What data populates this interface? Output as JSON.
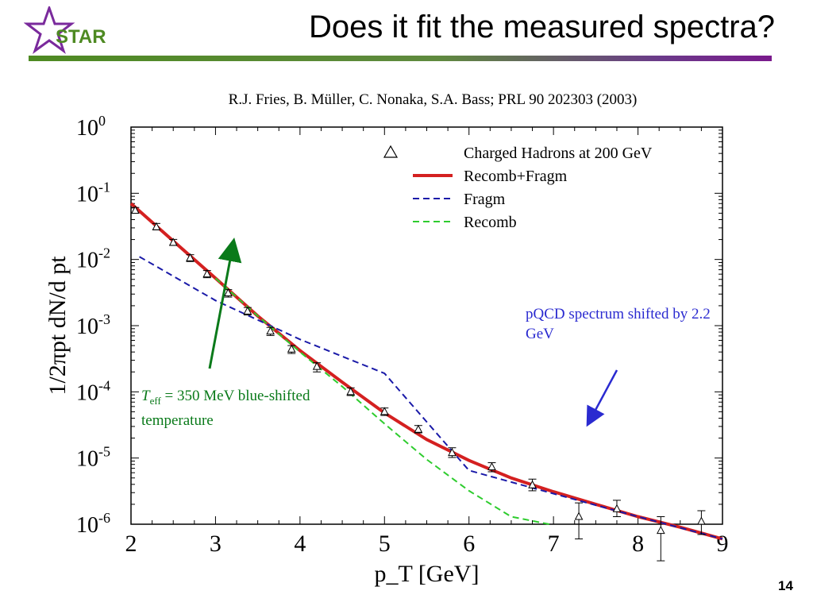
{
  "slide": {
    "title": "Does it fit the measured spectra?",
    "citation": "R.J. Fries, B. Müller, C. Nonaka, S.A. Bass; PRL 90 202303 (2003)",
    "logo_text": "STAR",
    "page_number": "14",
    "header_bar_colors": [
      "#4e8a22",
      "#7a1a8c"
    ]
  },
  "annotations": {
    "teff_symbol": "T",
    "teff_sub": "eff",
    "teff_text": " = 350 MeV blue-shifted temperature",
    "pqcd_text": "pQCD spectrum shifted by 2.2 GeV",
    "teff_color": "#0a7a1a",
    "pqcd_color": "#2a2ad0"
  },
  "chart_data": {
    "type": "line",
    "xlabel": "p_T [GeV]",
    "ylabel": "1/2πpt dN/d pt",
    "xlim": [
      2,
      9
    ],
    "ylim": [
      1e-06,
      1
    ],
    "yscale": "log",
    "xticks": [
      "2",
      "3",
      "4",
      "5",
      "6",
      "7",
      "8",
      "9"
    ],
    "yticks": [
      {
        "base": "10",
        "exp": "0"
      },
      {
        "base": "10",
        "exp": "-1"
      },
      {
        "base": "10",
        "exp": "-2"
      },
      {
        "base": "10",
        "exp": "-3"
      },
      {
        "base": "10",
        "exp": "-4"
      },
      {
        "base": "10",
        "exp": "-5"
      },
      {
        "base": "10",
        "exp": "-6"
      }
    ],
    "grid": false,
    "legend_position": "top-right",
    "series": [
      {
        "name": "Charged Hadrons at 200 GeV",
        "kind": "points",
        "marker": "triangle",
        "color": "#000000",
        "x": [
          2.05,
          2.3,
          2.5,
          2.7,
          2.9,
          3.15,
          3.38,
          3.65,
          3.9,
          4.2,
          4.6,
          5.0,
          5.4,
          5.8,
          6.27,
          6.75,
          7.3,
          7.75,
          8.27,
          8.75
        ],
        "y": [
          0.055,
          0.031,
          0.018,
          0.0105,
          0.006,
          0.0031,
          0.00165,
          0.00082,
          0.00044,
          0.00024,
          0.0001,
          5e-05,
          2.7e-05,
          1.2e-05,
          7.3e-06,
          3.9e-06,
          1.3e-06,
          1.7e-06,
          8e-07,
          1.1e-06
        ],
        "y_low": [
          0.05,
          0.028,
          0.0163,
          0.0093,
          0.0053,
          0.0027,
          0.00145,
          0.00071,
          0.00038,
          0.0002,
          8.8e-05,
          4.4e-05,
          2.4e-05,
          1.02e-05,
          6.2e-06,
          3.2e-06,
          6e-07,
          1.3e-06,
          2.8e-07,
          7e-07
        ],
        "y_high": [
          0.061,
          0.035,
          0.0201,
          0.0118,
          0.0068,
          0.0035,
          0.00188,
          0.00094,
          0.0005,
          0.000275,
          0.000115,
          5.7e-05,
          3.1e-05,
          1.43e-05,
          8.5e-06,
          4.8e-06,
          2.1e-06,
          2.3e-06,
          1.3e-06,
          1.6e-06
        ]
      },
      {
        "name": "Recomb+Fragm",
        "kind": "line",
        "style": "solid",
        "color": "#d42020",
        "x": [
          2.0,
          2.5,
          3.0,
          3.5,
          4.0,
          4.5,
          5.0,
          5.5,
          6.0,
          6.5,
          7.0,
          7.5,
          8.0,
          8.5,
          9.0
        ],
        "y": [
          0.07,
          0.019,
          0.0052,
          0.0014,
          0.00042,
          0.00014,
          4.8e-05,
          1.9e-05,
          9.2e-06,
          5e-06,
          3.1e-06,
          2e-06,
          1.3e-06,
          9e-07,
          6e-07
        ]
      },
      {
        "name": "Fragm",
        "kind": "line",
        "style": "dashed",
        "color": "#1a1aa8",
        "x": [
          2.1,
          3.0,
          4.0,
          5.0,
          6.0,
          7.0,
          8.0,
          9.0
        ],
        "y": [
          0.011,
          0.0024,
          0.00062,
          0.00019,
          6.5e-06,
          2.9e-06,
          1.3e-06,
          6e-07
        ]
      },
      {
        "name": "Recomb",
        "kind": "line",
        "style": "dashed",
        "color": "#2ecc2e",
        "x": [
          3.0,
          3.5,
          4.0,
          4.5,
          5.0,
          5.5,
          6.0,
          6.5,
          6.95
        ],
        "y": [
          0.0052,
          0.0014,
          0.0004,
          0.00012,
          3.3e-05,
          9.5e-06,
          3.2e-06,
          1.3e-06,
          1e-06
        ]
      }
    ]
  }
}
